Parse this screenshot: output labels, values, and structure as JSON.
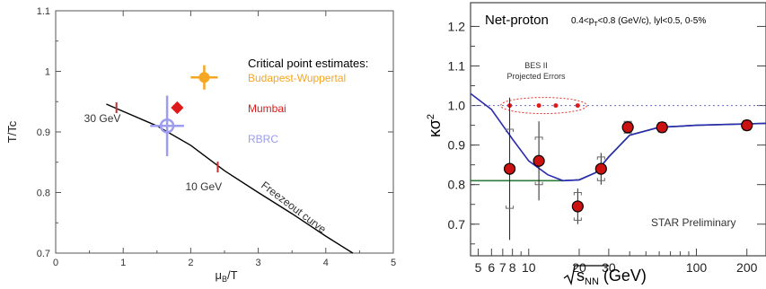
{
  "chart_data": [
    {
      "type": "scatter",
      "xlabel": "μB/T",
      "ylabel": "T/Tc",
      "xlim": [
        0,
        5
      ],
      "ylim": [
        0.7,
        1.1
      ],
      "x_ticks": [
        "0",
        "1",
        "2",
        "3",
        "4",
        "5"
      ],
      "y_ticks": [
        "0.7",
        "0.8",
        "0.9",
        "1",
        "1.1"
      ],
      "legend_title": "Critical point estimates:",
      "series": [
        {
          "name": "Budapest-Wuppertal",
          "color": "#f5a623",
          "x": 2.2,
          "y": 0.99,
          "xerr": 0.2,
          "yerr": 0.02
        },
        {
          "name": "Mumbai",
          "color": "#e01a1a",
          "x": 1.8,
          "y": 0.94,
          "xerr": 0.05,
          "yerr": 0.005
        },
        {
          "name": "RBRC",
          "color": "#9c9cf0",
          "x": 1.65,
          "y": 0.91,
          "xerr": 0.25,
          "yerr": 0.05
        }
      ],
      "freezeout_curve": {
        "label": "Freezeout curve",
        "x": [
          0.75,
          1.5,
          2.0,
          2.5,
          3.0,
          3.5,
          4.0,
          4.4
        ],
        "y": [
          0.946,
          0.91,
          0.878,
          0.836,
          0.8,
          0.765,
          0.728,
          0.7
        ]
      },
      "energy_marks": [
        {
          "label": "30 GeV",
          "x": 0.9,
          "y": 0.94
        },
        {
          "label": "10 GeV",
          "x": 2.4,
          "y": 0.842
        }
      ]
    },
    {
      "type": "scatter",
      "title": "Net-proton",
      "subtitle": "0.4<pT<0.8 (GeV/c), lyl<0.5, 0-5%",
      "xlabel": "√sNN (GeV)",
      "ylabel": "κσ²",
      "x_scale": "log",
      "xlim": [
        4.5,
        260
      ],
      "ylim": [
        0.62,
        1.26
      ],
      "x_ticks": [
        "5",
        "6",
        "7",
        "8",
        "10",
        "20",
        "30",
        "100",
        "200"
      ],
      "x_tick_values": [
        5,
        6,
        7,
        8,
        10,
        20,
        30,
        100,
        200
      ],
      "y_ticks": [
        "0.7",
        "0.8",
        "0.9",
        "1.0",
        "1.1",
        "1.2"
      ],
      "y_tick_values": [
        0.7,
        0.8,
        0.9,
        1.0,
        1.1,
        1.2
      ],
      "points": {
        "x": [
          7.7,
          11.5,
          19.6,
          27,
          39,
          62.4,
          200
        ],
        "y": [
          0.84,
          0.86,
          0.745,
          0.84,
          0.945,
          0.945,
          0.95
        ],
        "stat_err": [
          0.18,
          0.1,
          0.045,
          0.04,
          0.015,
          0.012,
          0.012
        ],
        "sys_err": [
          0.1,
          0.06,
          0.035,
          0.03,
          0.015,
          0.012,
          0.012
        ]
      },
      "projected": {
        "label_line1": "BES II",
        "label_line2": "Projected Errors",
        "x": [
          7.7,
          11.5,
          14.5,
          19.6
        ],
        "y": [
          1.0,
          1.0,
          1.0,
          1.0
        ]
      },
      "reference_line": 1.0,
      "model_curve_blue": {
        "x": [
          4.5,
          6,
          8,
          10,
          13,
          16,
          20,
          25,
          30,
          40,
          60,
          100,
          260
        ],
        "y": [
          1.03,
          0.99,
          0.915,
          0.86,
          0.825,
          0.81,
          0.812,
          0.83,
          0.87,
          0.925,
          0.945,
          0.95,
          0.955
        ]
      },
      "model_curve_green": {
        "x": [
          4.5,
          10,
          16,
          20,
          25,
          30,
          40,
          60,
          100,
          260
        ],
        "y": [
          0.81,
          0.81,
          0.81,
          0.812,
          0.83,
          0.87,
          0.925,
          0.945,
          0.95,
          0.955
        ]
      },
      "annotation": "STAR Preliminary"
    }
  ]
}
